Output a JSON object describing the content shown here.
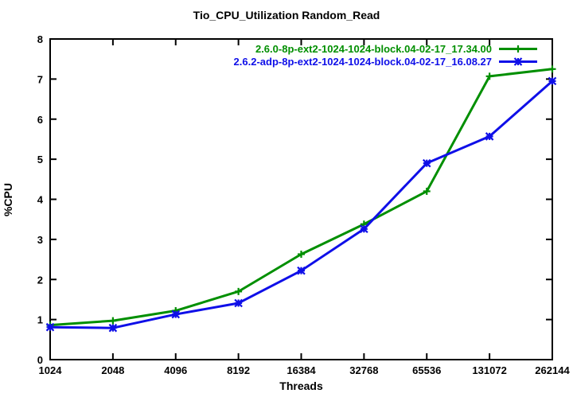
{
  "title": "Tio_CPU_Utilization Random_Read",
  "colors": {
    "axis": "#000000",
    "text": "#000000",
    "series1": "#008f00",
    "series2": "#0f0fe8"
  },
  "chart_data": {
    "type": "line",
    "title": "Tio_CPU_Utilization Random_Read",
    "xlabel": "Threads",
    "ylabel": "%CPU",
    "x_scale": "log2-categorical",
    "categories": [
      "1024",
      "2048",
      "4096",
      "8192",
      "16384",
      "32768",
      "65536",
      "131072",
      "262144"
    ],
    "ylim": [
      0,
      8
    ],
    "yticks": [
      0,
      1,
      2,
      3,
      4,
      5,
      6,
      7,
      8
    ],
    "grid": false,
    "legend_position": "top-right-inside",
    "series": [
      {
        "name": "2.6.0-8p-ext2-1024-1024-block.04-02-17_17.34.00",
        "color": "#008f00",
        "marker": "plus",
        "values": [
          0.86,
          0.97,
          1.22,
          1.7,
          2.63,
          3.38,
          4.2,
          7.07,
          7.25
        ]
      },
      {
        "name": "2.6.2-adp-8p-ext2-1024-1024-block.04-02-17_16.08.27",
        "color": "#0f0fe8",
        "marker": "star",
        "values": [
          0.81,
          0.79,
          1.13,
          1.41,
          2.22,
          3.26,
          4.9,
          5.57,
          6.95
        ]
      }
    ]
  }
}
